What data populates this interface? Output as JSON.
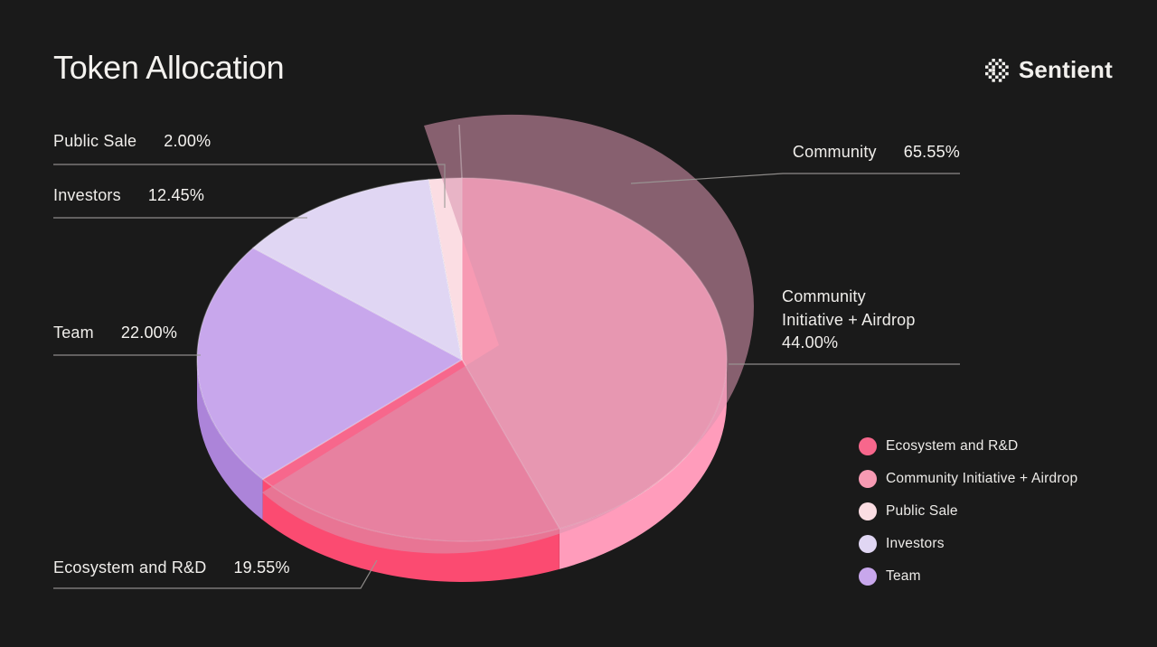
{
  "page": {
    "title": "Token Allocation",
    "brand": "Sentient",
    "background": "#1A1A1A"
  },
  "chart_data": {
    "type": "pie",
    "title": "Token Allocation",
    "unit": "%",
    "style": "3d-ellipse",
    "start_angle_deg": 0,
    "direction": "clockwise",
    "slices": [
      {
        "label": "Community Initiative + Airdrop",
        "value": 44.0,
        "color": "#F79AB3",
        "side_color": "#FF9CBB"
      },
      {
        "label": "Ecosystem and R&D",
        "value": 19.55,
        "color": "#F7678C",
        "side_color": "#FB4B71"
      },
      {
        "label": "Team",
        "value": 22.0,
        "color": "#C8A7EC",
        "side_color": "#AC84D9"
      },
      {
        "label": "Investors",
        "value": 12.45,
        "color": "#E0D6F3",
        "side_color": "#C9BCE8"
      },
      {
        "label": "Public Sale",
        "value": 2.0,
        "color": "#FBDDE3",
        "side_color": "#F2C6D0"
      }
    ],
    "overlay": {
      "label": "Community",
      "value": 65.55,
      "color": "rgba(218,150,176,0.57)"
    }
  },
  "callouts": {
    "public_sale": {
      "label": "Public Sale",
      "value": "2.00%"
    },
    "investors": {
      "label": "Investors",
      "value": "12.45%"
    },
    "team": {
      "label": "Team",
      "value": "22.00%"
    },
    "ecosystem": {
      "label": "Ecosystem and R&D",
      "value": "19.55%"
    },
    "community": {
      "label": "Community",
      "value": "65.55%"
    },
    "community_initiative": {
      "label_line1": "Community",
      "label_line2": "Initiative + Airdrop",
      "value": "44.00%"
    }
  },
  "legend": {
    "items": [
      {
        "label": "Ecosystem and R&D",
        "color": "#F7678C"
      },
      {
        "label": "Community Initiative + Airdrop",
        "color": "#F79AB3"
      },
      {
        "label": "Public Sale",
        "color": "#FBDDE3"
      },
      {
        "label": "Investors",
        "color": "#E0D6F3"
      },
      {
        "label": "Team",
        "color": "#C8A7EC"
      }
    ]
  },
  "line_color": "#9B9896"
}
